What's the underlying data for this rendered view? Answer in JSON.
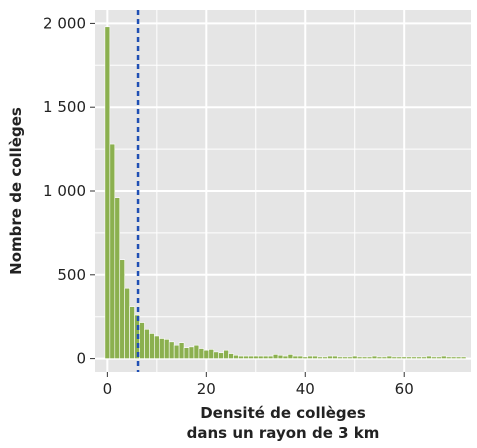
{
  "chart_data": {
    "type": "bar",
    "xlabel_lines": [
      "Densité de collèges",
      "dans un rayon de 3 km"
    ],
    "ylabel": "Nombre de collèges",
    "xlim": [
      -2.5,
      73.5
    ],
    "ylim": [
      -80,
      2080
    ],
    "x_ticks": [
      0,
      20,
      40,
      60
    ],
    "x_tick_labels": [
      "0",
      "20",
      "40",
      "60"
    ],
    "y_ticks": [
      0,
      500,
      1000,
      1500,
      2000
    ],
    "y_tick_labels": [
      "0",
      "500",
      "1 000",
      "1 500",
      "2 000"
    ],
    "grid": true,
    "bin_width": 1,
    "bar_color": "#8bb04f",
    "bar_edge_color": "#ffffff",
    "panel_color": "#e5e5e5",
    "reference_line": {
      "x": 6.2,
      "color": "#1f4fb4",
      "style": "dashed"
    },
    "x": [
      0,
      1,
      2,
      3,
      4,
      5,
      6,
      7,
      8,
      9,
      10,
      11,
      12,
      13,
      14,
      15,
      16,
      17,
      18,
      19,
      20,
      21,
      22,
      23,
      24,
      25,
      26,
      27,
      28,
      29,
      30,
      31,
      32,
      33,
      34,
      35,
      36,
      37,
      38,
      39,
      40,
      41,
      42,
      43,
      44,
      45,
      46,
      47,
      48,
      49,
      50,
      51,
      52,
      53,
      54,
      55,
      56,
      57,
      58,
      59,
      60,
      61,
      62,
      63,
      64,
      65,
      66,
      67,
      68,
      69,
      70,
      71,
      72
    ],
    "values": [
      1980,
      1280,
      960,
      590,
      420,
      310,
      260,
      215,
      175,
      150,
      135,
      120,
      115,
      100,
      80,
      95,
      65,
      70,
      80,
      60,
      50,
      55,
      40,
      35,
      50,
      30,
      20,
      15,
      15,
      15,
      15,
      15,
      15,
      15,
      25,
      20,
      15,
      25,
      15,
      15,
      10,
      15,
      15,
      10,
      10,
      15,
      15,
      10,
      10,
      10,
      15,
      10,
      10,
      10,
      15,
      10,
      10,
      15,
      10,
      10,
      10,
      10,
      10,
      10,
      10,
      15,
      10,
      10,
      15,
      10,
      10,
      10,
      10
    ]
  }
}
